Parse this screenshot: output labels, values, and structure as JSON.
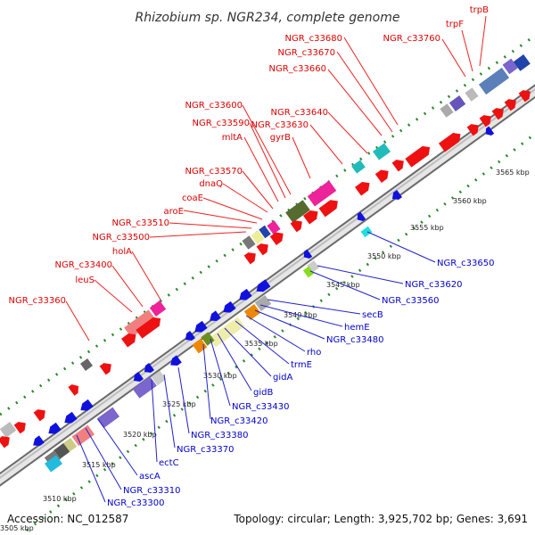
{
  "title": "Rhizobium sp. NGR234, complete genome",
  "accession": "Accession: NC_012587",
  "stats": "Topology: circular; Length: 3,925,702 bp; Genes: 3,691",
  "colors": {
    "forward_label": "#dd0000",
    "reverse_label": "#0000cc",
    "backbone": "#999999",
    "tick": "#339933"
  },
  "kbp_ticks": [
    "3505 kbp",
    "3510 kbp",
    "3515 kbp",
    "3520 kbp",
    "3525 kbp",
    "3530 kbp",
    "3535 kbp",
    "3540 kbp",
    "3545 kbp",
    "3550 kbp",
    "3555 kbp",
    "3560 kbp",
    "3565 kbp"
  ],
  "forward_labels": [
    "trpB",
    "trpF",
    "NGR_c33760",
    "NGR_c33680",
    "NGR_c33670",
    "NGR_c33660",
    "NGR_c33640",
    "NGR_c33630",
    "gyrB",
    "NGR_c33600",
    "NGR_c33590",
    "mltA",
    "NGR_c33570",
    "dnaQ",
    "coaE",
    "aroE",
    "NGR_c33510",
    "NGR_c33500",
    "holA",
    "NGR_c33400",
    "leuS",
    "NGR_c33360"
  ],
  "reverse_labels": [
    "NGR_c33650",
    "NGR_c33620",
    "NGR_c33560",
    "secB",
    "hemE",
    "NGR_c33480",
    "rho",
    "trmE",
    "gidA",
    "gidB",
    "NGR_c33430",
    "NGR_c33420",
    "NGR_c33380",
    "NGR_c33370",
    "ectC",
    "ascA",
    "NGR_c33310",
    "NGR_c33300"
  ]
}
